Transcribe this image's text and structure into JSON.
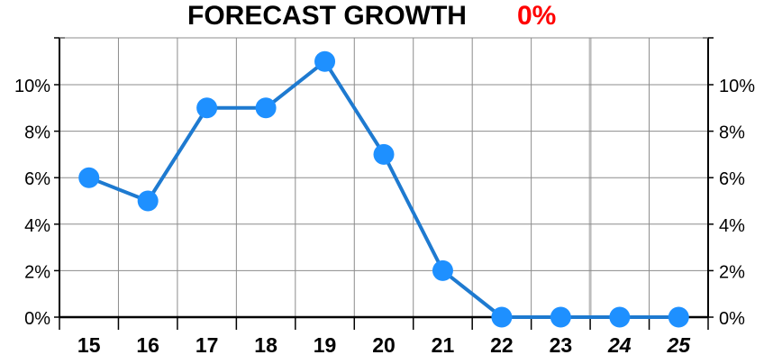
{
  "title": "FORECAST GROWTH",
  "forecast_value": "0%",
  "colors": {
    "series": "#1e7ad0",
    "marker": "#1e90ff",
    "forecast_value": "#ff0000",
    "grid": "#8c8c8c"
  },
  "chart_data": {
    "type": "line",
    "title": "FORECAST GROWTH",
    "categories": [
      "15",
      "16",
      "17",
      "18",
      "19",
      "20",
      "21",
      "22",
      "23",
      "24",
      "25"
    ],
    "forecast_categories": [
      "24",
      "25"
    ],
    "series": [
      {
        "values": [
          6,
          5,
          9,
          9,
          11,
          7,
          2,
          0,
          0,
          0,
          0
        ]
      }
    ],
    "y_unit": "%",
    "ylim": [
      0,
      12
    ],
    "yticks": [
      0,
      2,
      4,
      6,
      8,
      10
    ],
    "ytick_labels": [
      "0%",
      "2%",
      "4%",
      "6%",
      "8%",
      "10%"
    ],
    "y_axis_both_sides": true,
    "grid": true,
    "legend": "none"
  }
}
